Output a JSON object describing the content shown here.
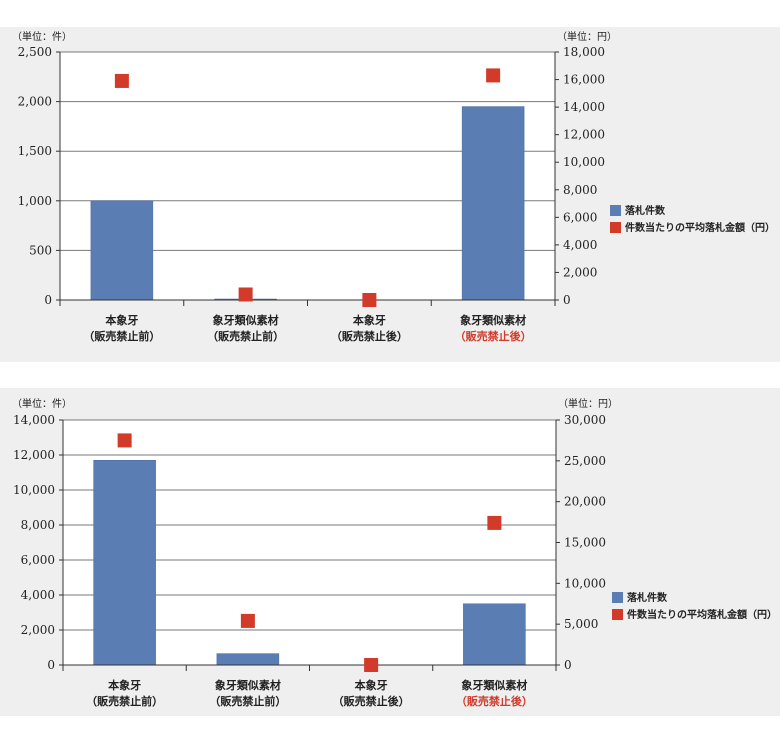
{
  "colors": {
    "bar": "#5a7db4",
    "marker": "#d23a2a",
    "highlight_label": "#d23a2a",
    "grid": "#7a7a7a"
  },
  "chart_data": [
    {
      "type": "bar",
      "left_unit": "（単位：件）",
      "right_unit": "（単位：円）",
      "categories": [
        {
          "line1": "本象牙",
          "line2": "（販売禁止前）",
          "line2_red": false
        },
        {
          "line1": "象牙類似素材",
          "line2": "（販売禁止前）",
          "line2_red": false
        },
        {
          "line1": "本象牙",
          "line2": "（販売禁止後）",
          "line2_red": false
        },
        {
          "line1": "象牙類似素材",
          "line2": "（販売禁止後）",
          "line2_red": true
        }
      ],
      "series": [
        {
          "name": "落札件数",
          "kind": "bar",
          "axis": "left",
          "values": [
            1000,
            10,
            0,
            1950
          ]
        },
        {
          "name": "件数当たりの平均落札金額（円）",
          "kind": "marker",
          "axis": "right",
          "values": [
            15900,
            400,
            0,
            16300
          ]
        }
      ],
      "ylim_left": [
        0,
        2500
      ],
      "ylim_right": [
        0,
        18000
      ],
      "yticks_left": [
        "0",
        "500",
        "1,000",
        "1,500",
        "2,000",
        "2,500"
      ],
      "yticks_right": [
        "0",
        "2,000",
        "4,000",
        "6,000",
        "8,000",
        "10,000",
        "12,000",
        "14,000",
        "16,000",
        "18,000"
      ],
      "legend": [
        "落札件数",
        "件数当たりの平均落札金額（円）"
      ],
      "legend_position": "right",
      "grid": true
    },
    {
      "type": "bar",
      "left_unit": "（単位：件）",
      "right_unit": "（単位：円）",
      "categories": [
        {
          "line1": "本象牙",
          "line2": "（販売禁止前）",
          "line2_red": false
        },
        {
          "line1": "象牙類似素材",
          "line2": "（販売禁止前）",
          "line2_red": false
        },
        {
          "line1": "本象牙",
          "line2": "（販売禁止後）",
          "line2_red": false
        },
        {
          "line1": "象牙類似素材",
          "line2": "（販売禁止後）",
          "line2_red": true
        }
      ],
      "series": [
        {
          "name": "落札件数",
          "kind": "bar",
          "axis": "left",
          "values": [
            11700,
            650,
            0,
            3500
          ]
        },
        {
          "name": "件数当たりの平均落札金額（円）",
          "kind": "marker",
          "axis": "right",
          "values": [
            27500,
            5400,
            0,
            17400
          ]
        }
      ],
      "ylim_left": [
        0,
        14000
      ],
      "ylim_right": [
        0,
        30000
      ],
      "yticks_left": [
        "0",
        "2,000",
        "4,000",
        "6,000",
        "8,000",
        "10,000",
        "12,000",
        "14,000"
      ],
      "yticks_right": [
        "0",
        "5,000",
        "10,000",
        "15,000",
        "20,000",
        "25,000",
        "30,000"
      ],
      "legend": [
        "落札件数",
        "件数当たりの平均落札金額（円）"
      ],
      "legend_position": "right",
      "grid": true
    }
  ]
}
